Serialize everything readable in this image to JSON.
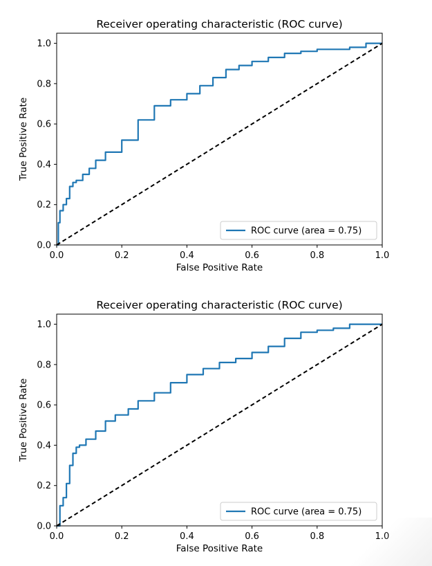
{
  "colors": {
    "curve": "#1f77b4",
    "diagonal": "#000000",
    "axis": "#000000",
    "legend_border": "#cccccc"
  },
  "chart_data": [
    {
      "type": "line",
      "title": "Receiver operating characteristic (ROC curve)",
      "xlabel": "False Positive Rate",
      "ylabel": "True Positive Rate",
      "xlim": [
        0,
        1
      ],
      "ylim": [
        0,
        1.05
      ],
      "xticks": [
        "0.0",
        "0.2",
        "0.4",
        "0.6",
        "0.8",
        "1.0"
      ],
      "yticks": [
        "0.0",
        "0.2",
        "0.4",
        "0.6",
        "0.8",
        "1.0"
      ],
      "grid": false,
      "legend": {
        "position": "lower-right",
        "entries": [
          "ROC curve (area = 0.75)"
        ]
      },
      "series": [
        {
          "name": "ROC curve (area = 0.75)",
          "x": [
            0,
            0.005,
            0.01,
            0.02,
            0.03,
            0.04,
            0.05,
            0.06,
            0.08,
            0.1,
            0.12,
            0.15,
            0.2,
            0.25,
            0.3,
            0.35,
            0.4,
            0.44,
            0.48,
            0.52,
            0.56,
            0.6,
            0.65,
            0.7,
            0.75,
            0.8,
            0.85,
            0.9,
            0.95,
            1.0
          ],
          "y": [
            0,
            0.11,
            0.17,
            0.2,
            0.23,
            0.29,
            0.31,
            0.32,
            0.35,
            0.38,
            0.42,
            0.46,
            0.52,
            0.62,
            0.69,
            0.72,
            0.75,
            0.79,
            0.83,
            0.87,
            0.89,
            0.91,
            0.93,
            0.95,
            0.96,
            0.97,
            0.97,
            0.98,
            1.0,
            1.0
          ]
        },
        {
          "name": "",
          "style": "dashed",
          "x": [
            0,
            1
          ],
          "y": [
            0,
            1
          ]
        }
      ]
    },
    {
      "type": "line",
      "title": "Receiver operating characteristic (ROC curve)",
      "xlabel": "False Positive Rate",
      "ylabel": "True Positive Rate",
      "xlim": [
        0,
        1
      ],
      "ylim": [
        0,
        1.05
      ],
      "xticks": [
        "0.0",
        "0.2",
        "0.4",
        "0.6",
        "0.8",
        "1.0"
      ],
      "yticks": [
        "0.0",
        "0.2",
        "0.4",
        "0.6",
        "0.8",
        "1.0"
      ],
      "grid": false,
      "legend": {
        "position": "lower-right",
        "entries": [
          "ROC curve (area = 0.75)"
        ]
      },
      "series": [
        {
          "name": "ROC curve (area = 0.75)",
          "x": [
            0,
            0.01,
            0.02,
            0.03,
            0.04,
            0.05,
            0.06,
            0.07,
            0.09,
            0.12,
            0.15,
            0.18,
            0.22,
            0.25,
            0.3,
            0.35,
            0.4,
            0.45,
            0.5,
            0.55,
            0.6,
            0.65,
            0.7,
            0.75,
            0.8,
            0.85,
            0.9,
            1.0
          ],
          "y": [
            0,
            0.1,
            0.14,
            0.21,
            0.3,
            0.36,
            0.39,
            0.4,
            0.43,
            0.47,
            0.52,
            0.55,
            0.58,
            0.62,
            0.66,
            0.71,
            0.75,
            0.78,
            0.81,
            0.83,
            0.86,
            0.89,
            0.93,
            0.96,
            0.97,
            0.98,
            1.0,
            1.0
          ]
        },
        {
          "name": "",
          "style": "dashed",
          "x": [
            0,
            1
          ],
          "y": [
            0,
            1
          ]
        }
      ]
    }
  ]
}
